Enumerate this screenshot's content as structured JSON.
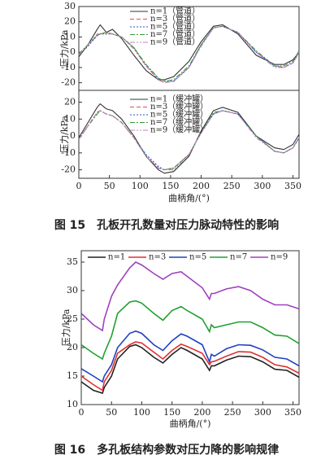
{
  "chart_data": [
    {
      "type": "line",
      "y_label": "压力/kPa",
      "xlim": [
        0,
        360
      ],
      "ylim": [
        -25,
        30
      ],
      "yticks": [
        -20,
        -10,
        0,
        10,
        20,
        30
      ],
      "x": [
        0,
        15,
        30,
        35,
        45,
        55,
        70,
        90,
        110,
        130,
        140,
        155,
        180,
        200,
        220,
        235,
        260,
        290,
        320,
        335,
        350,
        360
      ],
      "series": [
        {
          "name": "n=1（管道）",
          "color": "#333333",
          "values": [
            -3,
            5,
            15,
            18,
            13,
            15,
            9,
            -2,
            -12,
            -18,
            -18,
            -16,
            -6,
            7,
            17,
            18,
            12,
            -2,
            -8,
            -8,
            -5,
            0
          ]
        },
        {
          "name": "n=3（管道）",
          "color": "#e05050",
          "values": [
            -2,
            5,
            11,
            12,
            13,
            12,
            10,
            3,
            -9,
            -18,
            -20,
            -19,
            -10,
            5,
            16,
            17,
            13,
            0,
            -9,
            -10,
            -7,
            0
          ]
        },
        {
          "name": "n=5（管道）",
          "color": "#3050c0",
          "values": [
            -2,
            4,
            11,
            12,
            12,
            12,
            10,
            3,
            -9,
            -17,
            -19,
            -19,
            -10,
            5,
            16,
            17,
            13,
            0,
            -9,
            -10,
            -7,
            0
          ]
        },
        {
          "name": "n=7（管道）",
          "color": "#3a9a3a",
          "values": [
            -1,
            5,
            11,
            12,
            13,
            12,
            10,
            3,
            -8,
            -17,
            -19,
            -18,
            -9,
            5,
            16,
            17,
            13,
            1,
            -9,
            -9,
            -6,
            1
          ]
        },
        {
          "name": "n=9（管道）",
          "color": "#c080c0",
          "values": [
            -2,
            5,
            12,
            12,
            12,
            12,
            10,
            2,
            -9,
            -18,
            -20,
            -19,
            -10,
            4,
            16,
            17,
            13,
            0,
            -10,
            -10,
            -7,
            0
          ]
        }
      ]
    },
    {
      "type": "line",
      "y_label": "压力/kPa",
      "x_label": "曲柄角/(°)",
      "xlim": [
        0,
        360
      ],
      "ylim": [
        -25,
        27
      ],
      "yticks": [
        -20,
        -10,
        0,
        10,
        20
      ],
      "xticks": [
        0,
        50,
        100,
        150,
        200,
        250,
        300,
        350
      ],
      "x": [
        0,
        15,
        30,
        35,
        45,
        55,
        70,
        90,
        110,
        130,
        140,
        155,
        180,
        200,
        220,
        235,
        260,
        290,
        320,
        335,
        350,
        360
      ],
      "series": [
        {
          "name": "n=1（缓冲罐）",
          "color": "#333333",
          "values": [
            -1,
            8,
            17,
            19,
            16,
            15,
            10,
            0,
            -12,
            -20,
            -22,
            -21,
            -12,
            3,
            15,
            17,
            14,
            0,
            -7,
            -8,
            -5,
            1
          ]
        },
        {
          "name": "n=3（缓冲罐）",
          "color": "#e05050",
          "values": [
            -2,
            6,
            14,
            15,
            13,
            12,
            8,
            -1,
            -12,
            -19,
            -20,
            -19,
            -11,
            2,
            13,
            15,
            13,
            0,
            -9,
            -10,
            -7,
            -1
          ]
        },
        {
          "name": "n=5（缓冲罐）",
          "color": "#3050c0",
          "values": [
            -2,
            6,
            14,
            15,
            13,
            12,
            8,
            -1,
            -11,
            -18,
            -20,
            -19,
            -11,
            2,
            13,
            15,
            13,
            0,
            -9,
            -10,
            -7,
            -1
          ]
        },
        {
          "name": "n=7（缓冲罐）",
          "color": "#3a9a3a",
          "values": [
            -2,
            6,
            13,
            15,
            13,
            12,
            8,
            -1,
            -12,
            -19,
            -20,
            -19,
            -11,
            2,
            14,
            15,
            13,
            0,
            -9,
            -10,
            -7,
            -1
          ]
        },
        {
          "name": "n=9（缓冲罐）",
          "color": "#c080c0",
          "values": [
            -2,
            6,
            14,
            15,
            13,
            12,
            8,
            -1,
            -12,
            -19,
            -20,
            -20,
            -11,
            2,
            13,
            15,
            13,
            -1,
            -9,
            -10,
            -7,
            -1
          ]
        }
      ]
    },
    {
      "type": "line",
      "y_label": "压力/kPa",
      "x_label": "曲柄角/(°)",
      "xlim": [
        0,
        360
      ],
      "ylim": [
        10,
        37
      ],
      "yticks": [
        10,
        15,
        20,
        25,
        30,
        35
      ],
      "xticks": [
        0,
        50,
        100,
        150,
        200,
        250,
        300,
        350
      ],
      "x": [
        0,
        20,
        35,
        38,
        50,
        60,
        80,
        90,
        100,
        120,
        135,
        150,
        165,
        175,
        200,
        212,
        215,
        220,
        240,
        260,
        280,
        300,
        320,
        340,
        360
      ],
      "series": [
        {
          "name": "n=1",
          "color": "#222222",
          "values": [
            14,
            12.5,
            12,
            13,
            15,
            18,
            20.2,
            20.5,
            20,
            18.3,
            17.3,
            18.8,
            20,
            19.5,
            18,
            16,
            16.8,
            16.8,
            17.8,
            18.5,
            18.4,
            17.5,
            16.2,
            16,
            14.8
          ]
        },
        {
          "name": "n=3",
          "color": "#e03030",
          "values": [
            15,
            13.5,
            12.5,
            14,
            16,
            19,
            20.5,
            21,
            20.8,
            19.2,
            18,
            19.5,
            20.6,
            20.2,
            19,
            17,
            17.5,
            17.6,
            18.5,
            19.3,
            19.2,
            18.3,
            17,
            16.6,
            15.5
          ]
        },
        {
          "name": "n=5",
          "color": "#2040c0",
          "values": [
            16.3,
            15,
            14,
            15,
            17,
            20,
            22.5,
            22.9,
            22.5,
            20.5,
            19.5,
            21.2,
            22.4,
            22,
            20.5,
            17.5,
            18.8,
            18.5,
            19.8,
            20.5,
            20.4,
            19.6,
            18.3,
            18,
            16.8
          ]
        },
        {
          "name": "n=7",
          "color": "#20a030",
          "values": [
            20.5,
            19,
            18,
            19,
            22,
            26,
            28,
            28.2,
            27.8,
            26,
            24.8,
            26.5,
            27.2,
            26.5,
            25,
            22.8,
            24,
            23.5,
            24,
            24.5,
            24.5,
            23.5,
            22.2,
            22,
            20.7
          ]
        },
        {
          "name": "n=9",
          "color": "#a040c0",
          "values": [
            26,
            24,
            23,
            25,
            29,
            31,
            34,
            35,
            34.5,
            33,
            32,
            33,
            33.3,
            32.5,
            30.5,
            28.5,
            29.5,
            29.5,
            30.3,
            30.7,
            30,
            28.5,
            27.5,
            27.5,
            26.8
          ]
        }
      ]
    }
  ],
  "captions": [
    "图 15　孔板开孔数量对压力脉动特性的影响",
    "图 16　多孔板结构参数对压力降的影响规律"
  ]
}
